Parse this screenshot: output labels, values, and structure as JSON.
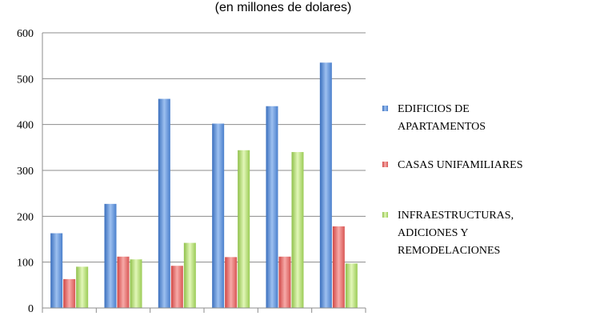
{
  "chart_data": {
    "type": "bar",
    "title": "",
    "subtitle": "(en millones de dolares)",
    "xlabel": "",
    "ylabel": "",
    "ylim": [
      0,
      600
    ],
    "yticks": [
      "0",
      "100",
      "200",
      "300",
      "400",
      "500",
      "600"
    ],
    "categories": [
      "",
      "",
      "",
      "",
      "",
      ""
    ],
    "grid": true,
    "legend_position": "right",
    "series": [
      {
        "name": "EDIFICIOS DE APARTAMENTOS",
        "legend_lines": [
          "EDIFICIOS DE",
          "APARTAMENTOS"
        ],
        "color": "#4f81bd",
        "values": [
          163,
          227,
          456,
          402,
          440,
          535
        ]
      },
      {
        "name": "CASAS UNIFAMILIARES",
        "legend_lines": [
          "CASAS UNIFAMILIARES"
        ],
        "color": "#e0504f",
        "values": [
          63,
          112,
          92,
          111,
          112,
          178
        ]
      },
      {
        "name": "INFRAESTRUCTURAS, ADICIONES Y REMODELACIONES",
        "legend_lines": [
          "INFRAESTRUCTURAS,",
          "ADICIONES Y",
          "REMODELACIONES"
        ],
        "color": "#9bbb59",
        "values": [
          90,
          106,
          142,
          344,
          340,
          97
        ]
      }
    ]
  }
}
